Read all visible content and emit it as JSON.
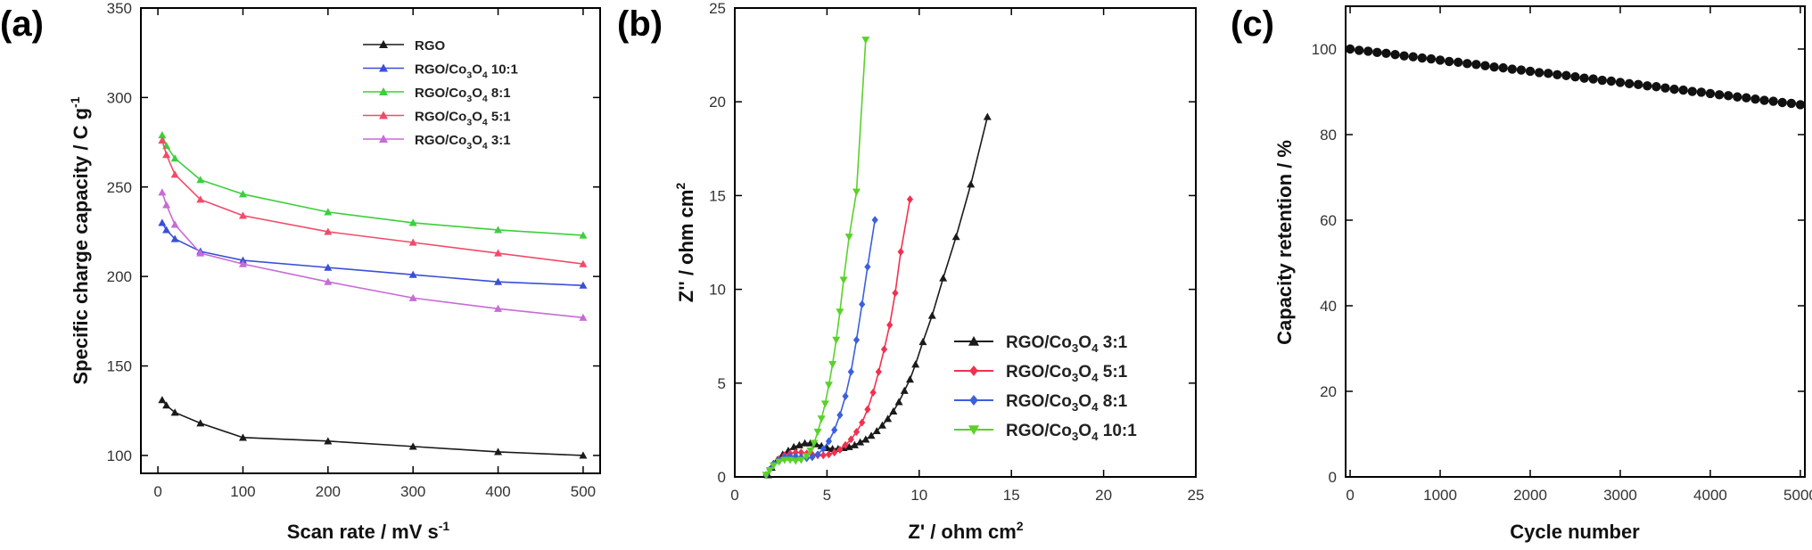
{
  "chart_data": [
    {
      "panel": "(a)",
      "type": "line",
      "xlabel": "Scan rate / mV s",
      "xlabel_sup": "-1",
      "ylabel": "Specific charge capacity / C g",
      "ylabel_sup": "-1",
      "xlim": [
        -20,
        520
      ],
      "ylim": [
        90,
        350
      ],
      "xticks": [
        0,
        100,
        200,
        300,
        400,
        500
      ],
      "yticks": [
        100,
        150,
        200,
        250,
        300,
        350
      ],
      "legend": "top-right",
      "x": [
        5,
        10,
        20,
        50,
        100,
        200,
        300,
        400,
        500
      ],
      "series": [
        {
          "name": "RGO",
          "name_parts": [
            "RGO"
          ],
          "color": "#1a1a1a",
          "marker": "triangle-up",
          "values": [
            131,
            128,
            124,
            118,
            110,
            108,
            105,
            102,
            100
          ]
        },
        {
          "name": "RGO/Co3O4 10:1",
          "name_parts": [
            "RGO/Co",
            "3",
            "O",
            "4",
            " 10:1"
          ],
          "color": "#3a4fd6",
          "marker": "triangle-up",
          "values": [
            230,
            226,
            221,
            214,
            209,
            205,
            201,
            197,
            195
          ]
        },
        {
          "name": "RGO/Co3O4 8:1",
          "name_parts": [
            "RGO/Co",
            "3",
            "O",
            "4",
            " 8:1"
          ],
          "color": "#3ccf3c",
          "marker": "triangle-up",
          "values": [
            279,
            273,
            266,
            254,
            246,
            236,
            230,
            226,
            223
          ]
        },
        {
          "name": "RGO/Co3O4 5:1",
          "name_parts": [
            "RGO/Co",
            "3",
            "O",
            "4",
            " 5:1"
          ],
          "color": "#f24a6a",
          "marker": "triangle-up",
          "values": [
            276,
            268,
            257,
            243,
            234,
            225,
            219,
            213,
            207
          ]
        },
        {
          "name": "RGO/Co3O4 3:1",
          "name_parts": [
            "RGO/Co",
            "3",
            "O",
            "4",
            " 3:1"
          ],
          "color": "#c76bd6",
          "marker": "triangle-up",
          "values": [
            247,
            240,
            229,
            213,
            207,
            197,
            188,
            182,
            177
          ]
        }
      ]
    },
    {
      "panel": "(b)",
      "type": "scatter",
      "xlabel": "Z' / ohm cm",
      "xlabel_sup": "2",
      "ylabel": "Z'' / ohm cm",
      "ylabel_sup": "2",
      "xlim": [
        0,
        25
      ],
      "ylim": [
        0,
        25
      ],
      "xticks": [
        0,
        5,
        10,
        15,
        20,
        25
      ],
      "yticks": [
        0,
        5,
        10,
        15,
        20,
        25
      ],
      "legend": "bottom-right",
      "series": [
        {
          "name": "RGO/Co3O4 3:1",
          "name_parts": [
            "RGO/Co",
            "3",
            "O",
            "4",
            " 3:1"
          ],
          "color": "#1a1a1a",
          "marker": "triangle-up",
          "x": [
            1.8,
            2.0,
            2.3,
            2.6,
            2.9,
            3.2,
            3.5,
            3.8,
            4.1,
            4.4,
            4.7,
            5.0,
            5.3,
            5.6,
            5.9,
            6.2,
            6.5,
            6.8,
            7.1,
            7.4,
            7.7,
            8.0,
            8.3,
            8.6,
            8.9,
            9.2,
            9.5,
            9.8,
            10.2,
            10.7,
            11.3,
            12.0,
            12.8,
            13.7
          ],
          "y": [
            0.1,
            0.5,
            0.9,
            1.2,
            1.4,
            1.6,
            1.7,
            1.8,
            1.8,
            1.75,
            1.65,
            1.55,
            1.5,
            1.5,
            1.55,
            1.6,
            1.7,
            1.85,
            2.0,
            2.2,
            2.45,
            2.75,
            3.1,
            3.5,
            4.0,
            4.6,
            5.2,
            6.0,
            7.2,
            8.6,
            10.6,
            12.8,
            15.6,
            19.2
          ]
        },
        {
          "name": "RGO/Co3O4 5:1",
          "name_parts": [
            "RGO/Co",
            "3",
            "O",
            "4",
            " 5:1"
          ],
          "color": "#f2304f",
          "marker": "diamond",
          "x": [
            1.7,
            1.9,
            2.1,
            2.4,
            2.7,
            3.0,
            3.3,
            3.6,
            3.9,
            4.2,
            4.5,
            4.8,
            5.1,
            5.4,
            5.7,
            6.0,
            6.3,
            6.6,
            6.9,
            7.2,
            7.5,
            7.8,
            8.1,
            8.4,
            8.7,
            9.0,
            9.5
          ],
          "y": [
            0.1,
            0.4,
            0.7,
            0.95,
            1.15,
            1.25,
            1.3,
            1.3,
            1.25,
            1.2,
            1.15,
            1.15,
            1.2,
            1.3,
            1.45,
            1.7,
            2.0,
            2.4,
            2.9,
            3.6,
            4.5,
            5.6,
            6.8,
            8.1,
            9.8,
            12.0,
            14.8
          ]
        },
        {
          "name": "RGO/Co3O4 8:1",
          "name_parts": [
            "RGO/Co",
            "3",
            "O",
            "4",
            " 8:1"
          ],
          "color": "#3a5fe0",
          "marker": "diamond",
          "x": [
            1.7,
            1.9,
            2.1,
            2.4,
            2.7,
            3.0,
            3.3,
            3.6,
            3.9,
            4.2,
            4.5,
            4.8,
            5.1,
            5.4,
            5.7,
            6.0,
            6.3,
            6.6,
            6.9,
            7.2,
            7.6
          ],
          "y": [
            0.1,
            0.4,
            0.7,
            0.9,
            1.05,
            1.1,
            1.1,
            1.05,
            1.0,
            1.05,
            1.2,
            1.5,
            1.9,
            2.5,
            3.3,
            4.3,
            5.6,
            7.3,
            9.2,
            11.2,
            13.7
          ]
        },
        {
          "name": "RGO/Co3O4 10:1",
          "name_parts": [
            "RGO/Co",
            "3",
            "O",
            "4",
            " 10:1"
          ],
          "color": "#5ad12a",
          "marker": "triangle-down",
          "x": [
            1.7,
            1.9,
            2.1,
            2.4,
            2.7,
            3.0,
            3.3,
            3.6,
            3.9,
            4.1,
            4.3,
            4.5,
            4.7,
            4.9,
            5.1,
            5.3,
            5.5,
            5.7,
            5.9,
            6.2,
            6.6,
            7.1
          ],
          "y": [
            0.1,
            0.35,
            0.6,
            0.8,
            0.9,
            0.9,
            0.85,
            0.9,
            1.1,
            1.4,
            1.8,
            2.4,
            3.1,
            3.9,
            4.9,
            6.0,
            7.3,
            8.8,
            10.5,
            12.8,
            15.2,
            23.3
          ]
        }
      ]
    },
    {
      "panel": "(c)",
      "type": "scatter",
      "xlabel": "Cycle number",
      "ylabel": "Capacity retention / %",
      "xlim": [
        -50,
        5050
      ],
      "ylim": [
        0,
        110
      ],
      "xticks": [
        0,
        1000,
        2000,
        3000,
        4000,
        5000
      ],
      "yticks": [
        0,
        20,
        40,
        60,
        80,
        100
      ],
      "series": [
        {
          "name": "",
          "color": "#111111",
          "marker": "circle",
          "x": [
            0,
            100,
            200,
            300,
            400,
            500,
            600,
            700,
            800,
            900,
            1000,
            1100,
            1200,
            1300,
            1400,
            1500,
            1600,
            1700,
            1800,
            1900,
            2000,
            2100,
            2200,
            2300,
            2400,
            2500,
            2600,
            2700,
            2800,
            2900,
            3000,
            3100,
            3200,
            3300,
            3400,
            3500,
            3600,
            3700,
            3800,
            3900,
            4000,
            4100,
            4200,
            4300,
            4400,
            4500,
            4600,
            4700,
            4800,
            4900,
            5000
          ],
          "y": [
            100.0,
            99.7,
            99.5,
            99.2,
            99.0,
            98.7,
            98.4,
            98.2,
            97.9,
            97.7,
            97.4,
            97.1,
            96.9,
            96.6,
            96.4,
            96.1,
            95.8,
            95.6,
            95.3,
            95.1,
            94.8,
            94.5,
            94.3,
            94.0,
            93.8,
            93.5,
            93.2,
            93.0,
            92.7,
            92.5,
            92.2,
            91.9,
            91.7,
            91.4,
            91.2,
            90.9,
            90.6,
            90.4,
            90.1,
            89.9,
            89.6,
            89.3,
            89.1,
            88.8,
            88.6,
            88.3,
            88.0,
            87.8,
            87.5,
            87.3,
            87.0
          ]
        }
      ]
    }
  ]
}
